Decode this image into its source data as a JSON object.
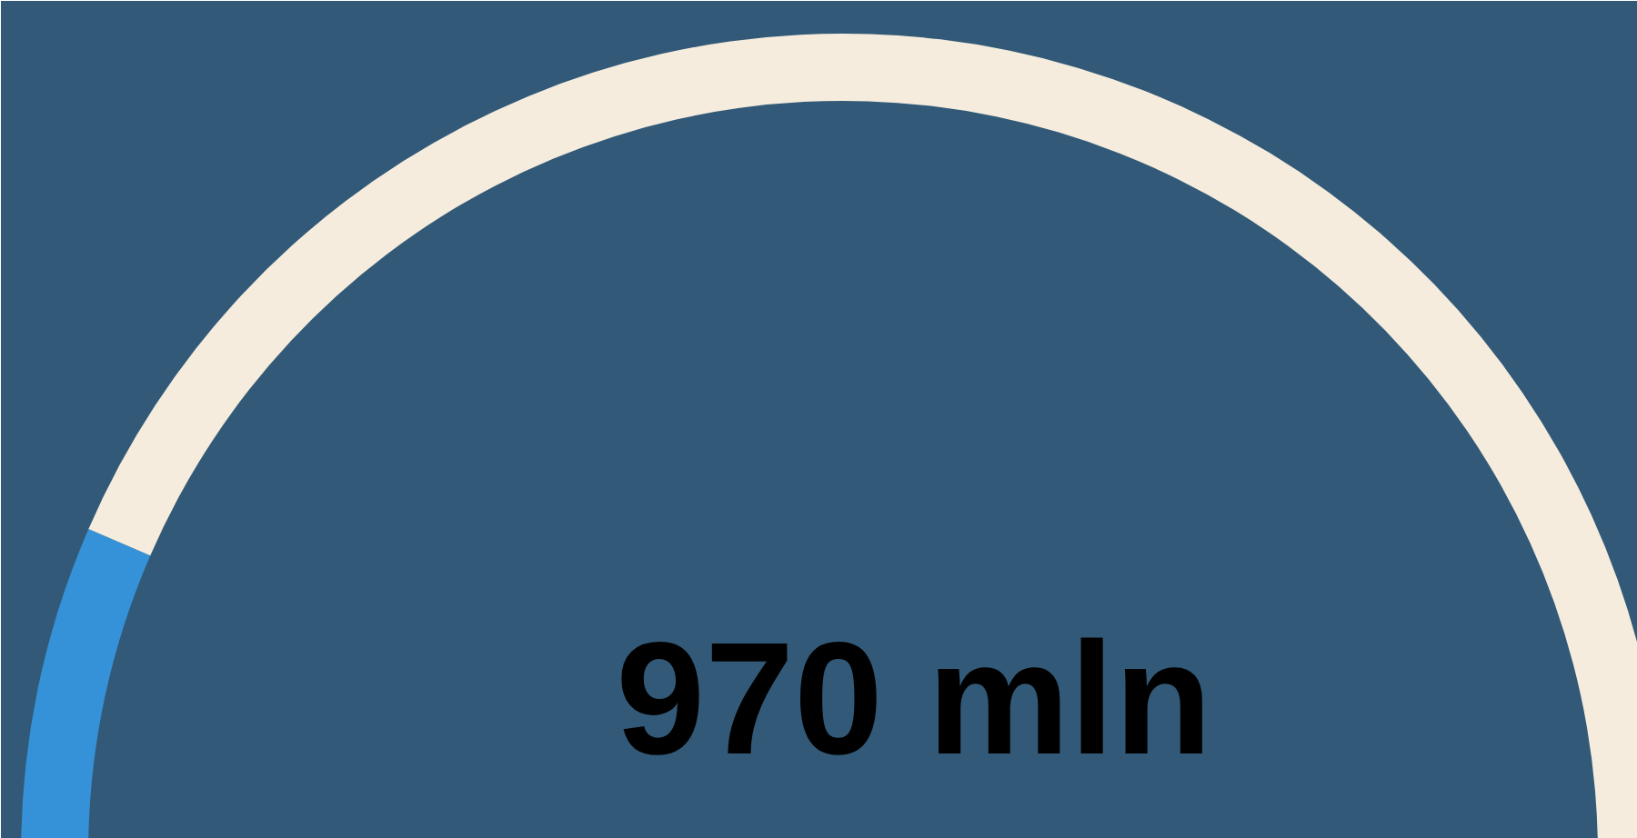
{
  "chart_data": {
    "type": "donut",
    "categories": [
      null,
      null
    ],
    "values": [
      13,
      87
    ],
    "colors": [
      "#3592d8",
      "#f5ecdd"
    ],
    "annotations": [
      "970 mln"
    ]
  }
}
